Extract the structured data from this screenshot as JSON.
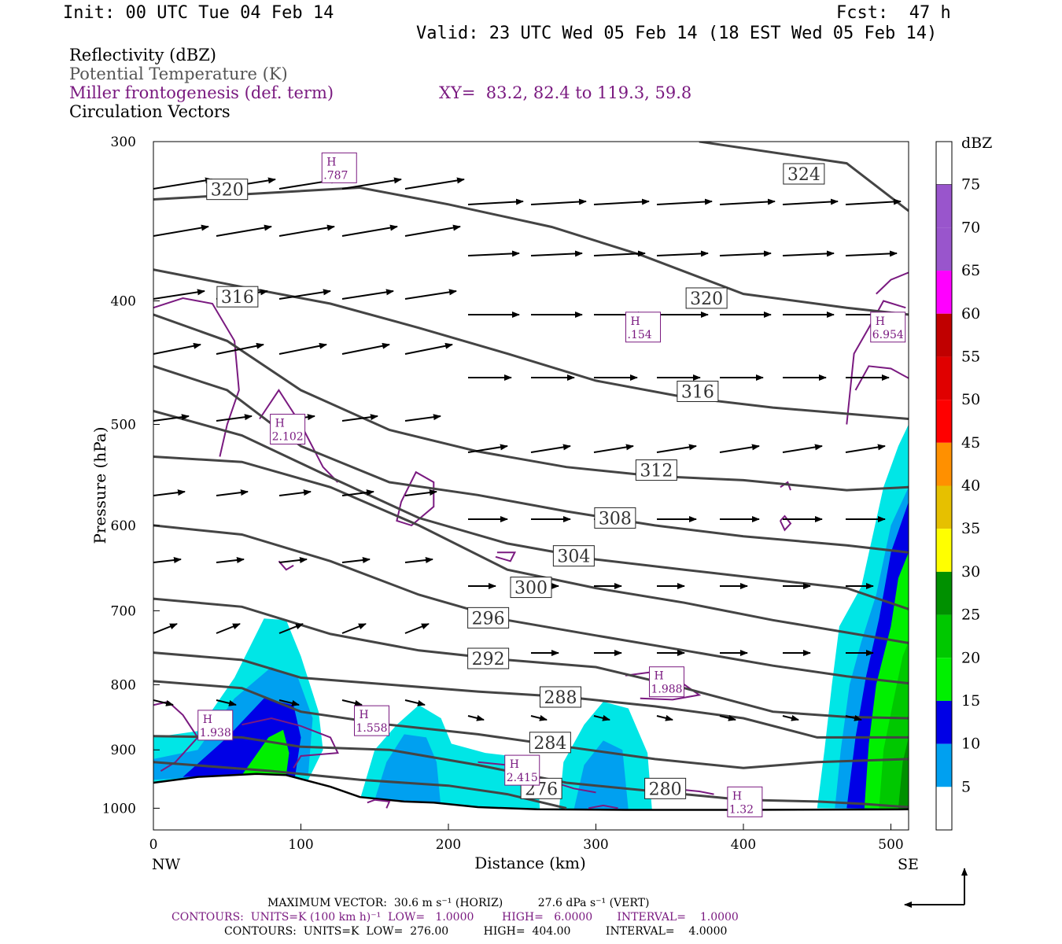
{
  "header": {
    "init": "Init: 00 UTC Tue 04 Feb 14",
    "fcst": "Fcst:  47 h",
    "valid": "Valid: 23 UTC Wed 05 Feb 14 (18 EST Wed 05 Feb 14)",
    "field1": "Reflectivity (dBZ)",
    "field2": "Potential Temperature (K)",
    "field3": "Miller frontogenesis (def. term)",
    "xy": "XY=  83.2, 82.4 to 119.3, 59.8",
    "field4": "Circulation Vectors"
  },
  "colors": {
    "theta": "#444444",
    "fronto": "#7a1a80",
    "arrow": "#000000"
  },
  "chart_data": {
    "type": "cross-section",
    "xlabel": "Distance (km)",
    "ylabel": "Pressure (hPa)",
    "xlim": [
      0,
      512
    ],
    "ylim": [
      1040,
      300
    ],
    "y_scale": "log",
    "x_ticks": [
      0,
      100,
      200,
      300,
      400,
      500
    ],
    "y_ticks": [
      300,
      400,
      500,
      600,
      700,
      800,
      900,
      1000
    ],
    "x_end_labels": [
      "NW",
      "SE"
    ],
    "theta_levels": [
      {
        "label": "320",
        "x": 50,
        "p": 327
      },
      {
        "label": "324",
        "x": 441,
        "p": 318
      },
      {
        "label": "316",
        "x": 57,
        "p": 397
      },
      {
        "label": "320",
        "x": 375,
        "p": 398
      },
      {
        "label": "316",
        "x": 369,
        "p": 471
      },
      {
        "label": "312",
        "x": 341,
        "p": 543
      },
      {
        "label": "308",
        "x": 313,
        "p": 592
      },
      {
        "label": "304",
        "x": 285,
        "p": 634
      },
      {
        "label": "300",
        "x": 256,
        "p": 671
      },
      {
        "label": "296",
        "x": 227,
        "p": 709
      },
      {
        "label": "292",
        "x": 227,
        "p": 763
      },
      {
        "label": "288",
        "x": 276,
        "p": 818
      },
      {
        "label": "284",
        "x": 269,
        "p": 888
      },
      {
        "label": "276",
        "x": 263,
        "p": 965
      },
      {
        "label": "280",
        "x": 347,
        "p": 965
      }
    ],
    "theta_lines": [
      {
        "value": 324,
        "pts": [
          [
            370,
            300
          ],
          [
            470,
            312
          ],
          [
            512,
            340
          ]
        ]
      },
      {
        "value": 320,
        "pts": [
          [
            0,
            333
          ],
          [
            60,
            330
          ],
          [
            140,
            326
          ],
          [
            200,
            336
          ],
          [
            270,
            350
          ],
          [
            330,
            368
          ],
          [
            400,
            395
          ],
          [
            470,
            405
          ],
          [
            512,
            410
          ]
        ]
      },
      {
        "value": 316,
        "pts": [
          [
            0,
            378
          ],
          [
            60,
            390
          ],
          [
            120,
            402
          ],
          [
            180,
            420
          ],
          [
            240,
            440
          ],
          [
            300,
            462
          ],
          [
            360,
            476
          ],
          [
            420,
            485
          ],
          [
            512,
            495
          ]
        ]
      },
      {
        "value": 312,
        "pts": [
          [
            0,
            410
          ],
          [
            50,
            430
          ],
          [
            100,
            470
          ],
          [
            160,
            505
          ],
          [
            220,
            525
          ],
          [
            280,
            540
          ],
          [
            340,
            549
          ],
          [
            400,
            553
          ],
          [
            470,
            563
          ],
          [
            512,
            560
          ]
        ]
      },
      {
        "value": 308,
        "pts": [
          [
            0,
            450
          ],
          [
            50,
            470
          ],
          [
            100,
            520
          ],
          [
            160,
            555
          ],
          [
            220,
            568
          ],
          [
            280,
            585
          ],
          [
            340,
            600
          ],
          [
            400,
            612
          ],
          [
            470,
            622
          ],
          [
            512,
            630
          ]
        ]
      },
      {
        "value": 304,
        "pts": [
          [
            0,
            488
          ],
          [
            60,
            510
          ],
          [
            120,
            550
          ],
          [
            180,
            592
          ],
          [
            240,
            620
          ],
          [
            300,
            638
          ],
          [
            360,
            650
          ],
          [
            420,
            662
          ],
          [
            470,
            672
          ],
          [
            512,
            698
          ]
        ]
      },
      {
        "value": 300,
        "pts": [
          [
            0,
            530
          ],
          [
            60,
            535
          ],
          [
            120,
            560
          ],
          [
            180,
            600
          ],
          [
            240,
            650
          ],
          [
            300,
            672
          ],
          [
            360,
            690
          ],
          [
            420,
            712
          ],
          [
            470,
            728
          ],
          [
            512,
            742
          ]
        ]
      },
      {
        "value": 296,
        "pts": [
          [
            0,
            600
          ],
          [
            60,
            610
          ],
          [
            120,
            640
          ],
          [
            180,
            680
          ],
          [
            240,
            712
          ],
          [
            300,
            732
          ],
          [
            360,
            752
          ],
          [
            420,
            773
          ],
          [
            470,
            788
          ],
          [
            512,
            798
          ]
        ]
      },
      {
        "value": 292,
        "pts": [
          [
            0,
            685
          ],
          [
            60,
            695
          ],
          [
            120,
            730
          ],
          [
            180,
            752
          ],
          [
            240,
            765
          ],
          [
            300,
            775
          ],
          [
            360,
            805
          ],
          [
            420,
            840
          ],
          [
            470,
            848
          ],
          [
            512,
            850
          ]
        ]
      },
      {
        "value": 288,
        "pts": [
          [
            0,
            755
          ],
          [
            60,
            765
          ],
          [
            100,
            790
          ],
          [
            160,
            800
          ],
          [
            220,
            810
          ],
          [
            280,
            818
          ],
          [
            340,
            832
          ],
          [
            400,
            850
          ],
          [
            450,
            880
          ],
          [
            512,
            880
          ]
        ]
      },
      {
        "value": 284,
        "pts": [
          [
            0,
            795
          ],
          [
            60,
            805
          ],
          [
            100,
            840
          ],
          [
            160,
            860
          ],
          [
            220,
            875
          ],
          [
            280,
            895
          ],
          [
            340,
            915
          ],
          [
            400,
            930
          ],
          [
            450,
            920
          ],
          [
            512,
            915
          ]
        ]
      },
      {
        "value": 280,
        "pts": [
          [
            0,
            878
          ],
          [
            60,
            880
          ],
          [
            100,
            895
          ],
          [
            160,
            900
          ],
          [
            220,
            925
          ],
          [
            280,
            955
          ],
          [
            340,
            970
          ],
          [
            400,
            985
          ],
          [
            450,
            988
          ],
          [
            480,
            992
          ],
          [
            512,
            998
          ]
        ]
      },
      {
        "value": 276,
        "pts": [
          [
            0,
            920
          ],
          [
            80,
            935
          ],
          [
            140,
            950
          ],
          [
            200,
            960
          ],
          [
            240,
            975
          ],
          [
            280,
            1000
          ]
        ]
      }
    ],
    "terrain": [
      [
        0,
        955
      ],
      [
        30,
        945
      ],
      [
        70,
        940
      ],
      [
        90,
        942
      ],
      [
        120,
        962
      ],
      [
        140,
        980
      ],
      [
        170,
        988
      ],
      [
        190,
        990
      ],
      [
        220,
        998
      ],
      [
        260,
        1002
      ],
      [
        320,
        1003
      ],
      [
        400,
        1003
      ],
      [
        512,
        1002
      ]
    ],
    "reflectivity_legend": {
      "title": "dBZ",
      "levels": [
        "5",
        "10",
        "15",
        "20",
        "25",
        "30",
        "35",
        "40",
        "45",
        "50",
        "55",
        "60",
        "65",
        "70",
        "75"
      ],
      "colors": [
        "#00e6e6",
        "#00a0f0",
        "#0000e6",
        "#00f000",
        "#00c800",
        "#009000",
        "#ffff00",
        "#e6c000",
        "#ff9000",
        "#ff0000",
        "#e00000",
        "#c00000",
        "#ff00ff",
        "#9955cc",
        "#ffffff"
      ]
    },
    "fronto_maxima": [
      {
        "label": "H\n.787",
        "x": 126,
        "p": 315
      },
      {
        "label": "H\n.154",
        "x": 332,
        "p": 420
      },
      {
        "label": "H\n6.954",
        "x": 498,
        "p": 420
      },
      {
        "label": "H\n2.102",
        "x": 91,
        "p": 505
      },
      {
        "label": "H\n1.938",
        "x": 42,
        "p": 862
      },
      {
        "label": "H\n1.558",
        "x": 148,
        "p": 855
      },
      {
        "label": "H\n1.988",
        "x": 348,
        "p": 797
      },
      {
        "label": "H\n2.415",
        "x": 250,
        "p": 935
      },
      {
        "label": "H\n1.32",
        "x": 401,
        "p": 990
      }
    ]
  },
  "footer": {
    "maxvec": "MAXIMUM VECTOR:  30.6 m s⁻¹ (HORIZ)          27.6 dPa s⁻¹ (VERT)",
    "contours1": "CONTOURS:  UNITS=K (100 km h)⁻¹  LOW=   1.0000        HIGH=   6.0000       INTERVAL=    1.0000",
    "contours2": "CONTOURS:  UNITS=K  LOW=  276.00          HIGH=  404.00          INTERVAL=    4.0000"
  }
}
